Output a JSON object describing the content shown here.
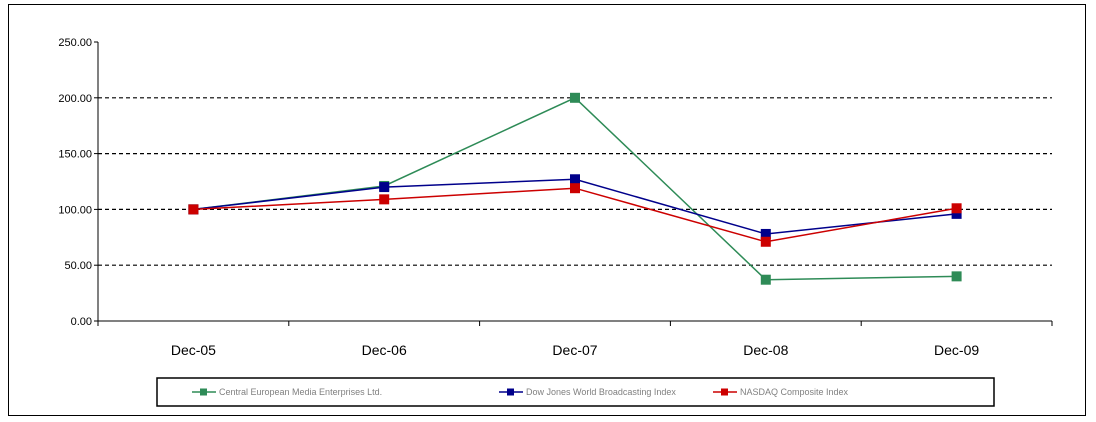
{
  "chart_data": {
    "type": "line",
    "title": "",
    "xlabel": "",
    "ylabel": "",
    "categories": [
      "Dec-05",
      "Dec-06",
      "Dec-07",
      "Dec-08",
      "Dec-09"
    ],
    "ylim": [
      0,
      250
    ],
    "yticks": [
      "0.00",
      "50.00",
      "100.00",
      "150.00",
      "200.00",
      "250.00"
    ],
    "grid": "dashed horizontal",
    "legend": "bottom",
    "series": [
      {
        "name": "Central European Media Enterprises Ltd.",
        "color": "#2e8b57",
        "values": [
          100,
          121,
          200,
          37,
          40
        ]
      },
      {
        "name": "Dow Jones World Broadcasting Index",
        "color": "#00008b",
        "values": [
          100,
          120,
          127,
          78,
          96
        ]
      },
      {
        "name": "NASDAQ Composite Index",
        "color": "#cc0000",
        "values": [
          100,
          109,
          119,
          71,
          101
        ]
      }
    ]
  }
}
